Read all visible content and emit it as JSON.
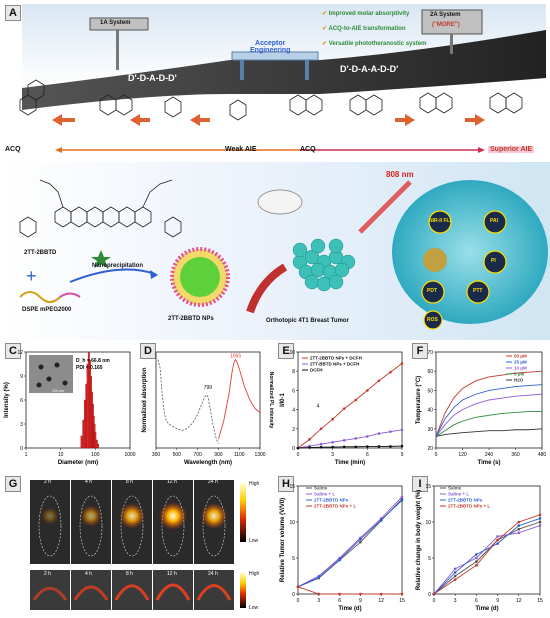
{
  "panel_letters": [
    "A",
    "B",
    "C",
    "D",
    "E",
    "F",
    "G",
    "H",
    "I"
  ],
  "panelA": {
    "system1": "1A System",
    "system2": "2A System",
    "more": "(\"MORE\")",
    "checks": [
      "Improved molar absorptivity",
      "ACQ-to-AIE transformation",
      "Versatile phototheranostic system"
    ],
    "acceptor": "Acceptor\nEngineering",
    "road_left": "D'-D-A-D-D'",
    "road_right": "D'-D-A-A-D-D'",
    "bottom_left": "ACQ",
    "weak_aie": "Weak AIE",
    "acq_mid": "ACQ",
    "superior_aie": "Superior AIE"
  },
  "panelB": {
    "molecule_name": "2TT-2BBTD",
    "dspe": "DSPE mPEG2000",
    "nanoprec": "Nanoprecipitation",
    "nps": "2TT-2BBTD NPs",
    "tumor": "Orthotopic 4T1 Breast Tumor",
    "laser": "808 nm",
    "modes": [
      "NIR-II FLI",
      "PAI",
      "PI",
      "PDT",
      "PTT",
      "ROS"
    ]
  },
  "chart_data": [
    {
      "panel": "C",
      "type": "bar",
      "xlabel": "Diameter (nm)",
      "ylabel": "Intensity (%)",
      "annotations": [
        "D_h = 66.8 nm",
        "PDI = 0.165",
        "100 nm"
      ],
      "x_log": true,
      "xlim": [
        1,
        1000
      ],
      "ylim": [
        0,
        12
      ],
      "xticks": [
        "1",
        "10",
        "100",
        "1000"
      ],
      "yticks": [
        "0",
        "3",
        "6",
        "9",
        "12"
      ],
      "x": [
        40,
        45,
        50,
        55,
        60,
        65,
        70,
        75,
        80,
        85,
        90,
        95,
        100,
        110,
        120
      ],
      "values": [
        1.5,
        3.5,
        6,
        8,
        10.5,
        12,
        11,
        9,
        7,
        5.5,
        4,
        3,
        2,
        1,
        0.5
      ]
    },
    {
      "panel": "D",
      "type": "line",
      "xlabel": "Wavelength (nm)",
      "ylabel_left": "Normalized absorption",
      "ylabel_right": "Normalized PL intensity",
      "xlim": [
        300,
        1300
      ],
      "xticks": [
        "300",
        "500",
        "700",
        "900",
        "1100",
        "1300"
      ],
      "annotations": [
        "799",
        "1065"
      ],
      "series": [
        {
          "name": "absorption",
          "x": [
            320,
            340,
            360,
            380,
            400,
            450,
            500,
            550,
            600,
            650,
            700,
            740,
            770,
            790,
            800,
            820,
            850,
            880,
            900
          ],
          "values": [
            1.0,
            0.9,
            0.6,
            0.4,
            0.3,
            0.25,
            0.22,
            0.2,
            0.22,
            0.28,
            0.38,
            0.5,
            0.58,
            0.6,
            0.58,
            0.45,
            0.25,
            0.1,
            0.05
          ]
        },
        {
          "name": "PL",
          "x": [
            900,
            950,
            1000,
            1030,
            1050,
            1065,
            1080,
            1100,
            1150,
            1200,
            1250,
            1300
          ],
          "values": [
            0.1,
            0.3,
            0.6,
            0.85,
            0.97,
            1.0,
            0.97,
            0.9,
            0.7,
            0.55,
            0.45,
            0.4
          ]
        }
      ]
    },
    {
      "panel": "E",
      "type": "line",
      "xlabel": "Time (min)",
      "ylabel": "I/I0-1",
      "xlim": [
        0,
        9
      ],
      "ylim": [
        0,
        10
      ],
      "xticks": [
        "0",
        "3",
        "6",
        "9"
      ],
      "yticks": [
        "0",
        "2",
        "4",
        "6",
        "8",
        "10"
      ],
      "annotation": "4",
      "series": [
        {
          "name": "2TT-2BBTD NPs + DCFH",
          "x": [
            0,
            1,
            2,
            3,
            4,
            5,
            6,
            7,
            8,
            9
          ],
          "values": [
            0,
            0.9,
            2.0,
            3.0,
            4.1,
            5.0,
            6.0,
            7.0,
            7.9,
            8.8
          ]
        },
        {
          "name": "2TT-BBTD NPs + DCFH",
          "x": [
            0,
            1,
            2,
            3,
            4,
            5,
            6,
            7,
            8,
            9
          ],
          "values": [
            0,
            0.2,
            0.4,
            0.6,
            0.8,
            1.0,
            1.2,
            1.5,
            1.7,
            1.9
          ]
        },
        {
          "name": "DCFH",
          "x": [
            0,
            1,
            2,
            3,
            4,
            5,
            6,
            7,
            8,
            9
          ],
          "values": [
            0,
            0.05,
            0.08,
            0.1,
            0.12,
            0.13,
            0.15,
            0.16,
            0.17,
            0.2
          ]
        }
      ]
    },
    {
      "panel": "F",
      "type": "line",
      "xlabel": "Time (s)",
      "ylabel": "Temperature (°C)",
      "xlim": [
        0,
        480
      ],
      "ylim": [
        20,
        70
      ],
      "xticks": [
        "0",
        "120",
        "240",
        "360",
        "480"
      ],
      "yticks": [
        "20",
        "30",
        "40",
        "50",
        "60",
        "70"
      ],
      "series": [
        {
          "name": "50 μM",
          "x": [
            0,
            40,
            80,
            120,
            180,
            240,
            300,
            360,
            420,
            480
          ],
          "values": [
            26,
            38,
            46,
            51,
            55,
            57,
            58,
            59,
            59.5,
            60
          ]
        },
        {
          "name": "25 μM",
          "x": [
            0,
            40,
            80,
            120,
            180,
            240,
            300,
            360,
            420,
            480
          ],
          "values": [
            26,
            35,
            41,
            45,
            48,
            50,
            51,
            52,
            52.5,
            53
          ]
        },
        {
          "name": "10 μM",
          "x": [
            0,
            40,
            80,
            120,
            180,
            240,
            300,
            360,
            420,
            480
          ],
          "values": [
            26,
            32,
            37,
            40,
            43,
            45,
            46,
            47,
            47.5,
            48
          ]
        },
        {
          "name": "5 μM",
          "x": [
            0,
            40,
            80,
            120,
            180,
            240,
            300,
            360,
            420,
            480
          ],
          "values": [
            26,
            29,
            32,
            34,
            36,
            37,
            38,
            38.5,
            39,
            39
          ]
        },
        {
          "name": "H2O",
          "x": [
            0,
            40,
            80,
            120,
            180,
            240,
            300,
            360,
            420,
            480
          ],
          "values": [
            26,
            27,
            27.5,
            28,
            28.5,
            29,
            29,
            29.5,
            29.5,
            30
          ]
        }
      ]
    },
    {
      "panel": "H",
      "type": "line",
      "xlabel": "Time (d)",
      "ylabel": "Relative Tumor volume (V/V0)",
      "xlim": [
        0,
        15
      ],
      "ylim": [
        0,
        15
      ],
      "xticks": [
        "0",
        "3",
        "6",
        "9",
        "12",
        "15"
      ],
      "yticks": [
        "0",
        "5",
        "10",
        "15"
      ],
      "series": [
        {
          "name": "Saline",
          "x": [
            0,
            3,
            6,
            9,
            12,
            15
          ],
          "values": [
            1,
            2.2,
            4.7,
            7.2,
            10.2,
            13.2
          ]
        },
        {
          "name": "Saline + L",
          "x": [
            0,
            3,
            6,
            9,
            12,
            15
          ],
          "values": [
            1,
            2.5,
            5.0,
            7.8,
            10.5,
            13.5
          ]
        },
        {
          "name": "2TT-2BBTD NPs",
          "x": [
            0,
            3,
            6,
            9,
            12,
            15
          ],
          "values": [
            1,
            2.3,
            4.8,
            7.6,
            10.3,
            13.0
          ]
        },
        {
          "name": "2TT-2BBTD NPs + L",
          "x": [
            0,
            3,
            6,
            9,
            12,
            15
          ],
          "values": [
            1,
            0,
            0,
            0,
            0,
            0
          ]
        }
      ]
    },
    {
      "panel": "I",
      "type": "line",
      "xlabel": "Time (d)",
      "ylabel": "Relative change in body weight (%)",
      "xlim": [
        0,
        15
      ],
      "ylim": [
        0,
        15
      ],
      "xticks": [
        "0",
        "3",
        "6",
        "9",
        "12",
        "15"
      ],
      "yticks": [
        "0",
        "5",
        "10",
        "15"
      ],
      "series": [
        {
          "name": "Saline",
          "x": [
            0,
            3,
            6,
            9,
            12,
            15
          ],
          "values": [
            0,
            2.5,
            4.5,
            7.5,
            9.0,
            10.0
          ]
        },
        {
          "name": "Saline + L",
          "x": [
            0,
            3,
            6,
            9,
            12,
            15
          ],
          "values": [
            0,
            3.5,
            5.0,
            8.0,
            8.5,
            9.5
          ]
        },
        {
          "name": "2TT-2BBTD NPs",
          "x": [
            0,
            3,
            6,
            9,
            12,
            15
          ],
          "values": [
            0,
            3.0,
            5.5,
            7.0,
            9.5,
            10.5
          ]
        },
        {
          "name": "2TT-2BBTD NPs + L",
          "x": [
            0,
            3,
            6,
            9,
            12,
            15
          ],
          "values": [
            0,
            2.0,
            4.0,
            7.5,
            10.0,
            11.0
          ]
        }
      ]
    }
  ],
  "panelG": {
    "times_top": [
      "2 h",
      "4 h",
      "8 h",
      "12 h",
      "24 h"
    ],
    "times_bottom": [
      "2 h",
      "4 h",
      "8 h",
      "12 h",
      "24 h"
    ],
    "high": "High",
    "low": "Low"
  },
  "colors": {
    "red": "#c0392b",
    "purple": "#8e5bd6",
    "green": "#2e8b3a",
    "blue": "#2f5fd0",
    "gray": "#666666"
  }
}
